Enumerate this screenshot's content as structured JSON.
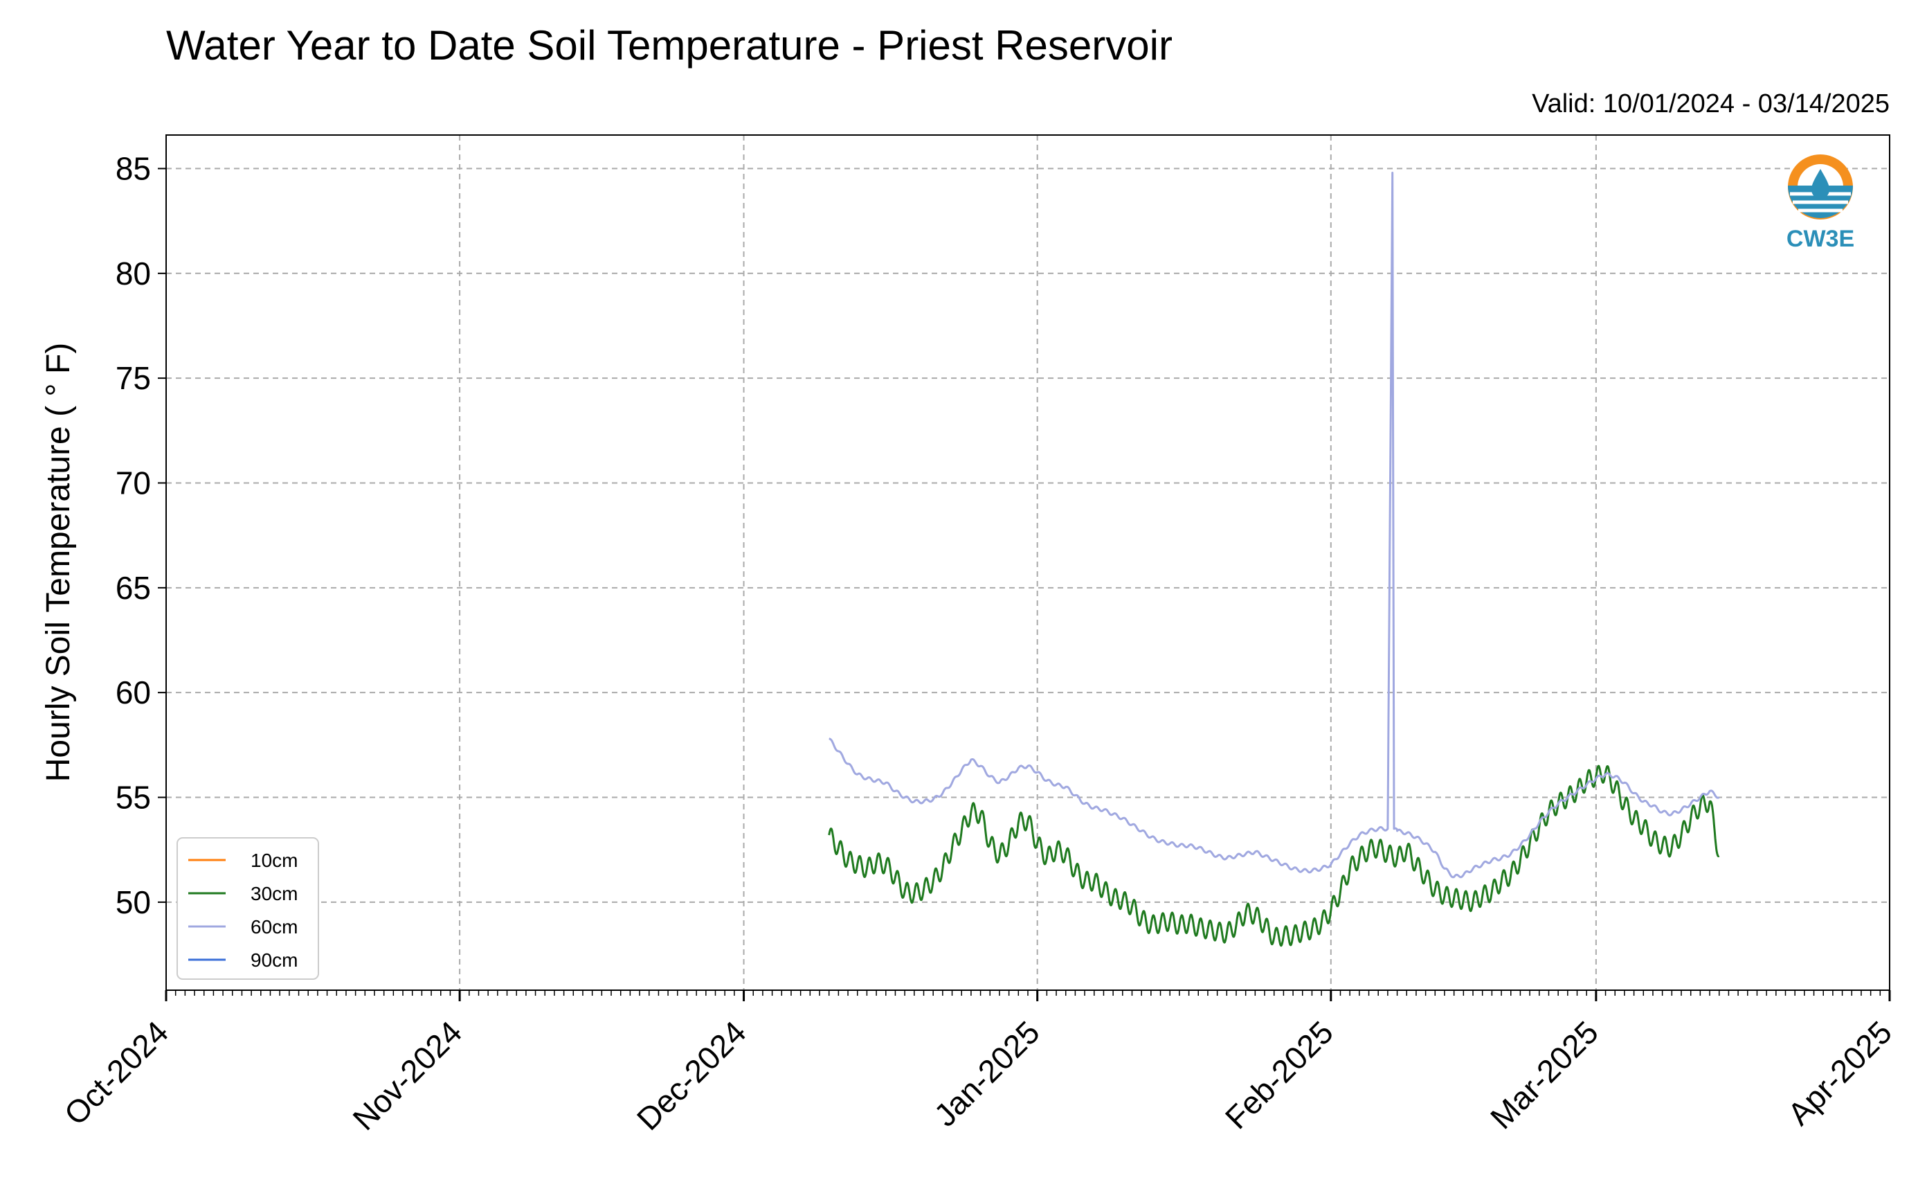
{
  "chart_data": {
    "type": "line",
    "title": "Water Year to Date Soil Temperature - Priest Reservoir",
    "subtitle": "Valid: 10/01/2024 - 03/14/2025",
    "xlabel": "",
    "ylabel": "Hourly Soil Temperature ( ° F)",
    "x_axis": {
      "type": "date",
      "min": "2024-10-01",
      "max": "2025-04-01"
    },
    "ylim": [
      45.8,
      86.6
    ],
    "yticks": [
      50,
      55,
      60,
      65,
      70,
      75,
      80,
      85
    ],
    "xticks": [
      {
        "date": "2024-10-01",
        "label": "Oct-2024"
      },
      {
        "date": "2024-11-01",
        "label": "Nov-2024"
      },
      {
        "date": "2024-12-01",
        "label": "Dec-2024"
      },
      {
        "date": "2025-01-01",
        "label": "Jan-2025"
      },
      {
        "date": "2025-02-01",
        "label": "Feb-2025"
      },
      {
        "date": "2025-03-01",
        "label": "Mar-2025"
      },
      {
        "date": "2025-04-01",
        "label": "Apr-2025"
      }
    ],
    "grid": true,
    "legend_position": "bottom-left",
    "series": [
      {
        "name": "10cm",
        "color": "#ff7f0e",
        "points": []
      },
      {
        "name": "30cm",
        "color": "#1f7a1f",
        "points": [
          [
            "2024-12-10",
            53.2
          ],
          [
            "2024-12-11",
            52.6
          ],
          [
            "2024-12-12",
            52.0
          ],
          [
            "2024-12-13",
            51.8
          ],
          [
            "2024-12-14",
            51.6
          ],
          [
            "2024-12-15",
            51.9
          ],
          [
            "2024-12-16",
            51.8
          ],
          [
            "2024-12-17",
            51.2
          ],
          [
            "2024-12-18",
            50.5
          ],
          [
            "2024-12-19",
            50.4
          ],
          [
            "2024-12-20",
            50.6
          ],
          [
            "2024-12-21",
            51.0
          ],
          [
            "2024-12-22",
            51.6
          ],
          [
            "2024-12-23",
            52.6
          ],
          [
            "2024-12-24",
            53.4
          ],
          [
            "2024-12-25",
            54.3
          ],
          [
            "2024-12-26",
            54.2
          ],
          [
            "2024-12-27",
            52.8
          ],
          [
            "2024-12-28",
            52.2
          ],
          [
            "2024-12-29",
            52.8
          ],
          [
            "2024-12-30",
            53.8
          ],
          [
            "2024-12-31",
            53.9
          ],
          [
            "2025-01-01",
            52.8
          ],
          [
            "2025-01-02",
            52.1
          ],
          [
            "2025-01-03",
            52.5
          ],
          [
            "2025-01-04",
            52.3
          ],
          [
            "2025-01-05",
            51.5
          ],
          [
            "2025-01-06",
            51.0
          ],
          [
            "2025-01-07",
            51.0
          ],
          [
            "2025-01-08",
            50.6
          ],
          [
            "2025-01-09",
            50.2
          ],
          [
            "2025-01-10",
            50.1
          ],
          [
            "2025-01-11",
            49.8
          ],
          [
            "2025-01-12",
            49.2
          ],
          [
            "2025-01-13",
            48.9
          ],
          [
            "2025-01-14",
            49.0
          ],
          [
            "2025-01-15",
            49.1
          ],
          [
            "2025-01-16",
            48.9
          ],
          [
            "2025-01-17",
            49.0
          ],
          [
            "2025-01-18",
            48.8
          ],
          [
            "2025-01-19",
            48.7
          ],
          [
            "2025-01-20",
            48.6
          ],
          [
            "2025-01-21",
            48.5
          ],
          [
            "2025-01-22",
            48.9
          ],
          [
            "2025-01-23",
            49.5
          ],
          [
            "2025-01-24",
            49.4
          ],
          [
            "2025-01-25",
            48.9
          ],
          [
            "2025-01-26",
            48.3
          ],
          [
            "2025-01-27",
            48.4
          ],
          [
            "2025-01-28",
            48.4
          ],
          [
            "2025-01-29",
            48.6
          ],
          [
            "2025-01-30",
            48.7
          ],
          [
            "2025-01-31",
            49.0
          ],
          [
            "2025-02-01",
            49.6
          ],
          [
            "2025-02-02",
            50.5
          ],
          [
            "2025-02-03",
            51.6
          ],
          [
            "2025-02-04",
            52.1
          ],
          [
            "2025-02-05",
            52.5
          ],
          [
            "2025-02-06",
            52.6
          ],
          [
            "2025-02-07",
            52.3
          ],
          [
            "2025-02-08",
            52.1
          ],
          [
            "2025-02-09",
            52.5
          ],
          [
            "2025-02-10",
            51.8
          ],
          [
            "2025-02-11",
            51.2
          ],
          [
            "2025-02-12",
            50.6
          ],
          [
            "2025-02-13",
            50.3
          ],
          [
            "2025-02-14",
            50.2
          ],
          [
            "2025-02-15",
            50.1
          ],
          [
            "2025-02-16",
            50.0
          ],
          [
            "2025-02-17",
            50.3
          ],
          [
            "2025-02-18",
            50.5
          ],
          [
            "2025-02-19",
            51.0
          ],
          [
            "2025-02-20",
            51.3
          ],
          [
            "2025-02-21",
            52.0
          ],
          [
            "2025-02-22",
            52.8
          ],
          [
            "2025-02-23",
            53.6
          ],
          [
            "2025-02-24",
            54.3
          ],
          [
            "2025-02-25",
            54.7
          ],
          [
            "2025-02-26",
            55.0
          ],
          [
            "2025-02-27",
            55.3
          ],
          [
            "2025-02-28",
            55.8
          ],
          [
            "2025-03-01",
            56.0
          ],
          [
            "2025-03-02",
            56.2
          ],
          [
            "2025-03-03",
            55.5
          ],
          [
            "2025-03-04",
            54.7
          ],
          [
            "2025-03-05",
            54.0
          ],
          [
            "2025-03-06",
            53.6
          ],
          [
            "2025-03-07",
            53.0
          ],
          [
            "2025-03-08",
            52.7
          ],
          [
            "2025-03-09",
            52.6
          ],
          [
            "2025-03-10",
            53.2
          ],
          [
            "2025-03-11",
            54.0
          ],
          [
            "2025-03-12",
            54.6
          ],
          [
            "2025-03-13",
            54.8
          ],
          [
            "2025-03-14",
            52.2
          ]
        ]
      },
      {
        "name": "60cm",
        "color": "#a0a8e0",
        "points": [
          [
            "2024-12-10",
            57.8
          ],
          [
            "2024-12-11",
            57.2
          ],
          [
            "2024-12-12",
            56.6
          ],
          [
            "2024-12-13",
            56.1
          ],
          [
            "2024-12-14",
            55.9
          ],
          [
            "2024-12-15",
            55.8
          ],
          [
            "2024-12-16",
            55.7
          ],
          [
            "2024-12-17",
            55.3
          ],
          [
            "2024-12-18",
            55.0
          ],
          [
            "2024-12-19",
            54.8
          ],
          [
            "2024-12-20",
            54.8
          ],
          [
            "2024-12-21",
            54.9
          ],
          [
            "2024-12-22",
            55.2
          ],
          [
            "2024-12-23",
            55.7
          ],
          [
            "2024-12-24",
            56.3
          ],
          [
            "2024-12-25",
            56.8
          ],
          [
            "2024-12-26",
            56.5
          ],
          [
            "2024-12-27",
            56.0
          ],
          [
            "2024-12-28",
            55.7
          ],
          [
            "2024-12-29",
            56.0
          ],
          [
            "2024-12-30",
            56.4
          ],
          [
            "2024-12-31",
            56.5
          ],
          [
            "2025-01-01",
            56.2
          ],
          [
            "2025-01-02",
            55.8
          ],
          [
            "2025-01-03",
            55.6
          ],
          [
            "2025-01-04",
            55.5
          ],
          [
            "2025-01-05",
            55.1
          ],
          [
            "2025-01-06",
            54.7
          ],
          [
            "2025-01-07",
            54.5
          ],
          [
            "2025-01-08",
            54.4
          ],
          [
            "2025-01-09",
            54.2
          ],
          [
            "2025-01-10",
            54.0
          ],
          [
            "2025-01-11",
            53.7
          ],
          [
            "2025-01-12",
            53.4
          ],
          [
            "2025-01-13",
            53.1
          ],
          [
            "2025-01-14",
            52.9
          ],
          [
            "2025-01-15",
            52.8
          ],
          [
            "2025-01-16",
            52.7
          ],
          [
            "2025-01-17",
            52.7
          ],
          [
            "2025-01-18",
            52.6
          ],
          [
            "2025-01-19",
            52.4
          ],
          [
            "2025-01-20",
            52.2
          ],
          [
            "2025-01-21",
            52.1
          ],
          [
            "2025-01-22",
            52.2
          ],
          [
            "2025-01-23",
            52.3
          ],
          [
            "2025-01-24",
            52.4
          ],
          [
            "2025-01-25",
            52.2
          ],
          [
            "2025-01-26",
            52.0
          ],
          [
            "2025-01-27",
            51.8
          ],
          [
            "2025-01-28",
            51.6
          ],
          [
            "2025-01-29",
            51.5
          ],
          [
            "2025-01-30",
            51.5
          ],
          [
            "2025-01-31",
            51.6
          ],
          [
            "2025-02-01",
            51.8
          ],
          [
            "2025-02-02",
            52.3
          ],
          [
            "2025-02-03",
            52.8
          ],
          [
            "2025-02-04",
            53.2
          ],
          [
            "2025-02-05",
            53.4
          ],
          [
            "2025-02-06",
            53.5
          ],
          [
            "2025-02-07",
            53.5
          ],
          [
            "2025-02-07T12:00",
            84.8
          ],
          [
            "2025-02-07T16:00",
            53.5
          ],
          [
            "2025-02-08",
            53.4
          ],
          [
            "2025-02-09",
            53.3
          ],
          [
            "2025-02-10",
            53.1
          ],
          [
            "2025-02-11",
            52.8
          ],
          [
            "2025-02-12",
            52.4
          ],
          [
            "2025-02-13",
            51.6
          ],
          [
            "2025-02-14",
            51.2
          ],
          [
            "2025-02-15",
            51.3
          ],
          [
            "2025-02-16",
            51.6
          ],
          [
            "2025-02-17",
            51.8
          ],
          [
            "2025-02-18",
            52.0
          ],
          [
            "2025-02-19",
            52.1
          ],
          [
            "2025-02-20",
            52.3
          ],
          [
            "2025-02-21",
            52.7
          ],
          [
            "2025-02-22",
            53.2
          ],
          [
            "2025-02-23",
            53.8
          ],
          [
            "2025-02-24",
            54.3
          ],
          [
            "2025-02-25",
            54.7
          ],
          [
            "2025-02-26",
            55.0
          ],
          [
            "2025-02-27",
            55.3
          ],
          [
            "2025-02-28",
            55.6
          ],
          [
            "2025-03-01",
            55.9
          ],
          [
            "2025-03-02",
            56.1
          ],
          [
            "2025-03-03",
            56.0
          ],
          [
            "2025-03-04",
            55.7
          ],
          [
            "2025-03-05",
            55.2
          ],
          [
            "2025-03-06",
            54.8
          ],
          [
            "2025-03-07",
            54.6
          ],
          [
            "2025-03-08",
            54.3
          ],
          [
            "2025-03-09",
            54.2
          ],
          [
            "2025-03-10",
            54.4
          ],
          [
            "2025-03-11",
            54.7
          ],
          [
            "2025-03-12",
            55.0
          ],
          [
            "2025-03-13",
            55.3
          ],
          [
            "2025-03-14",
            55.0
          ]
        ]
      },
      {
        "name": "90cm",
        "color": "#3b6fd8",
        "points": []
      }
    ]
  },
  "logo": {
    "text": "CW3E",
    "ring_color": "#f5901e",
    "wave_color": "#2b8fb8",
    "text_color": "#2b8fb8"
  },
  "style": {
    "grid_color": "#aaaaaa",
    "axis_color": "#000000"
  }
}
